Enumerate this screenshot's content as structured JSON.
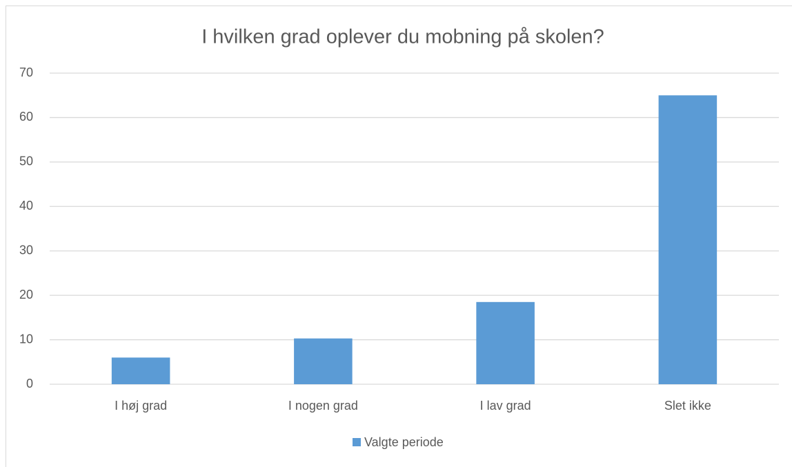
{
  "chart_data": {
    "type": "bar",
    "title": "I hvilken grad oplever du mobning på skolen?",
    "categories": [
      "I høj grad",
      "I nogen grad",
      "I lav grad",
      "Slet ikke"
    ],
    "series": [
      {
        "name": "Valgte periode",
        "color": "#5b9bd5",
        "values": [
          6,
          10.3,
          18.5,
          65
        ]
      }
    ],
    "ylim": [
      0,
      70
    ],
    "yticks": [
      0,
      10,
      20,
      30,
      40,
      50,
      60,
      70
    ],
    "grid": true,
    "legend": "bottom"
  }
}
